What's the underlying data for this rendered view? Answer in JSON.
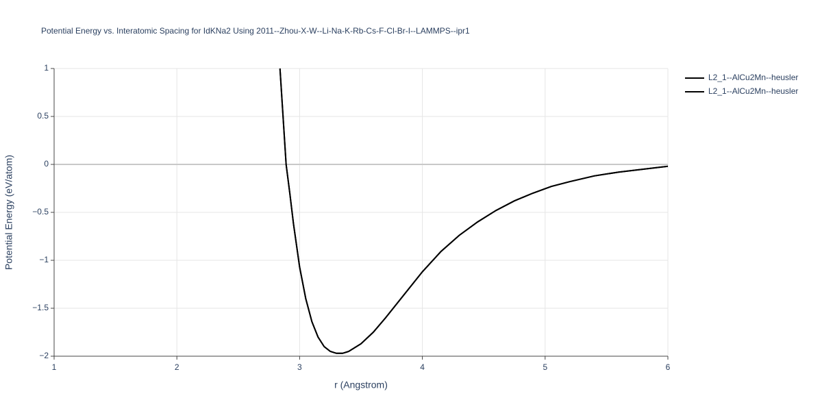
{
  "chart_data": {
    "type": "line",
    "title": "Potential Energy vs. Interatomic Spacing for IdKNa2 Using 2011--Zhou-X-W--Li-Na-K-Rb-Cs-F-Cl-Br-I--LAMMPS--ipr1",
    "x_label": "r (Angstrom)",
    "y_label": "Potential Energy (eV/atom)",
    "x": [
      2.84,
      2.87,
      2.89,
      2.92,
      2.95,
      3.0,
      3.05,
      3.1,
      3.15,
      3.2,
      3.25,
      3.3,
      3.35,
      3.4,
      3.5,
      3.6,
      3.7,
      3.85,
      4.0,
      4.15,
      4.3,
      4.45,
      4.6,
      4.75,
      4.9,
      5.05,
      5.2,
      5.4,
      5.6,
      5.8,
      6.0
    ],
    "series": [
      {
        "name": "L2_1--AlCu2Mn--heusler",
        "color": "#000000",
        "values": [
          1,
          0.4,
          0,
          -0.3,
          -0.62,
          -1.07,
          -1.4,
          -1.64,
          -1.8,
          -1.9,
          -1.95,
          -1.97,
          -1.97,
          -1.95,
          -1.87,
          -1.75,
          -1.6,
          -1.36,
          -1.12,
          -0.91,
          -0.74,
          -0.6,
          -0.48,
          -0.38,
          -0.3,
          -0.23,
          -0.18,
          -0.12,
          -0.08,
          -0.05,
          -0.02
        ]
      },
      {
        "name": "L2_1--AlCu2Mn--heusler",
        "color": "#000000",
        "values": [
          1,
          0.4,
          0,
          -0.3,
          -0.62,
          -1.07,
          -1.4,
          -1.64,
          -1.8,
          -1.9,
          -1.95,
          -1.97,
          -1.97,
          -1.95,
          -1.87,
          -1.75,
          -1.6,
          -1.36,
          -1.12,
          -0.91,
          -0.74,
          -0.6,
          -0.48,
          -0.38,
          -0.3,
          -0.23,
          -0.18,
          -0.12,
          -0.08,
          -0.05,
          -0.02
        ]
      }
    ],
    "xlim": [
      1,
      6
    ],
    "xticks": [
      1,
      2,
      3,
      4,
      5,
      6
    ],
    "ylim": [
      -2,
      1
    ],
    "yticks": [
      {
        "value": -2,
        "label": "−2"
      },
      {
        "value": -1.5,
        "label": "−1.5"
      },
      {
        "value": -1,
        "label": "−1"
      },
      {
        "value": -0.5,
        "label": "−0.5"
      },
      0,
      0.5,
      1
    ],
    "grid": true
  }
}
